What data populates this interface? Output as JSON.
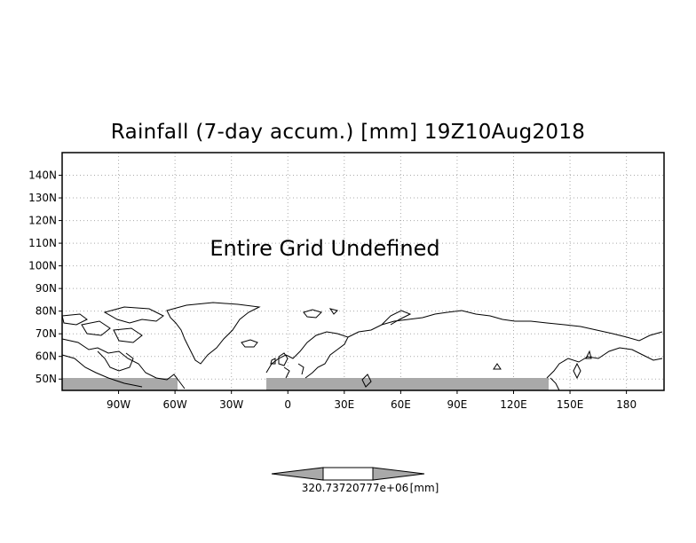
{
  "title": "Rainfall (7-day accum.) [mm] 19Z10Aug2018",
  "message": "Entire Grid Undefined",
  "colorbar": {
    "label": "320.73720777e+06",
    "unit": "[mm]",
    "colors": {
      "center": "#ffffff",
      "arrows": "#a9a9a9",
      "outline": "#000000"
    }
  },
  "axes": {
    "lat_labels": [
      "140N",
      "130N",
      "120N",
      "110N",
      "100N",
      "90N",
      "80N",
      "70N",
      "60N",
      "50N"
    ],
    "lat_values": [
      140,
      130,
      120,
      110,
      100,
      90,
      80,
      70,
      60,
      50
    ],
    "lon_labels": [
      "90W",
      "60W",
      "30W",
      "0",
      "30E",
      "60E",
      "90E",
      "120E",
      "150E",
      "180"
    ],
    "lon_values": [
      -90,
      -60,
      -30,
      0,
      30,
      60,
      90,
      120,
      150,
      180
    ],
    "lat_range": [
      45,
      150
    ],
    "lon_range": [
      -120,
      200
    ],
    "grid": true,
    "grid_style": "dotted"
  },
  "colors": {
    "land_fill": "#ffffff",
    "coast": "#000000",
    "undefined_band": "#a9a9a9",
    "grid": "#aaaaaa"
  }
}
